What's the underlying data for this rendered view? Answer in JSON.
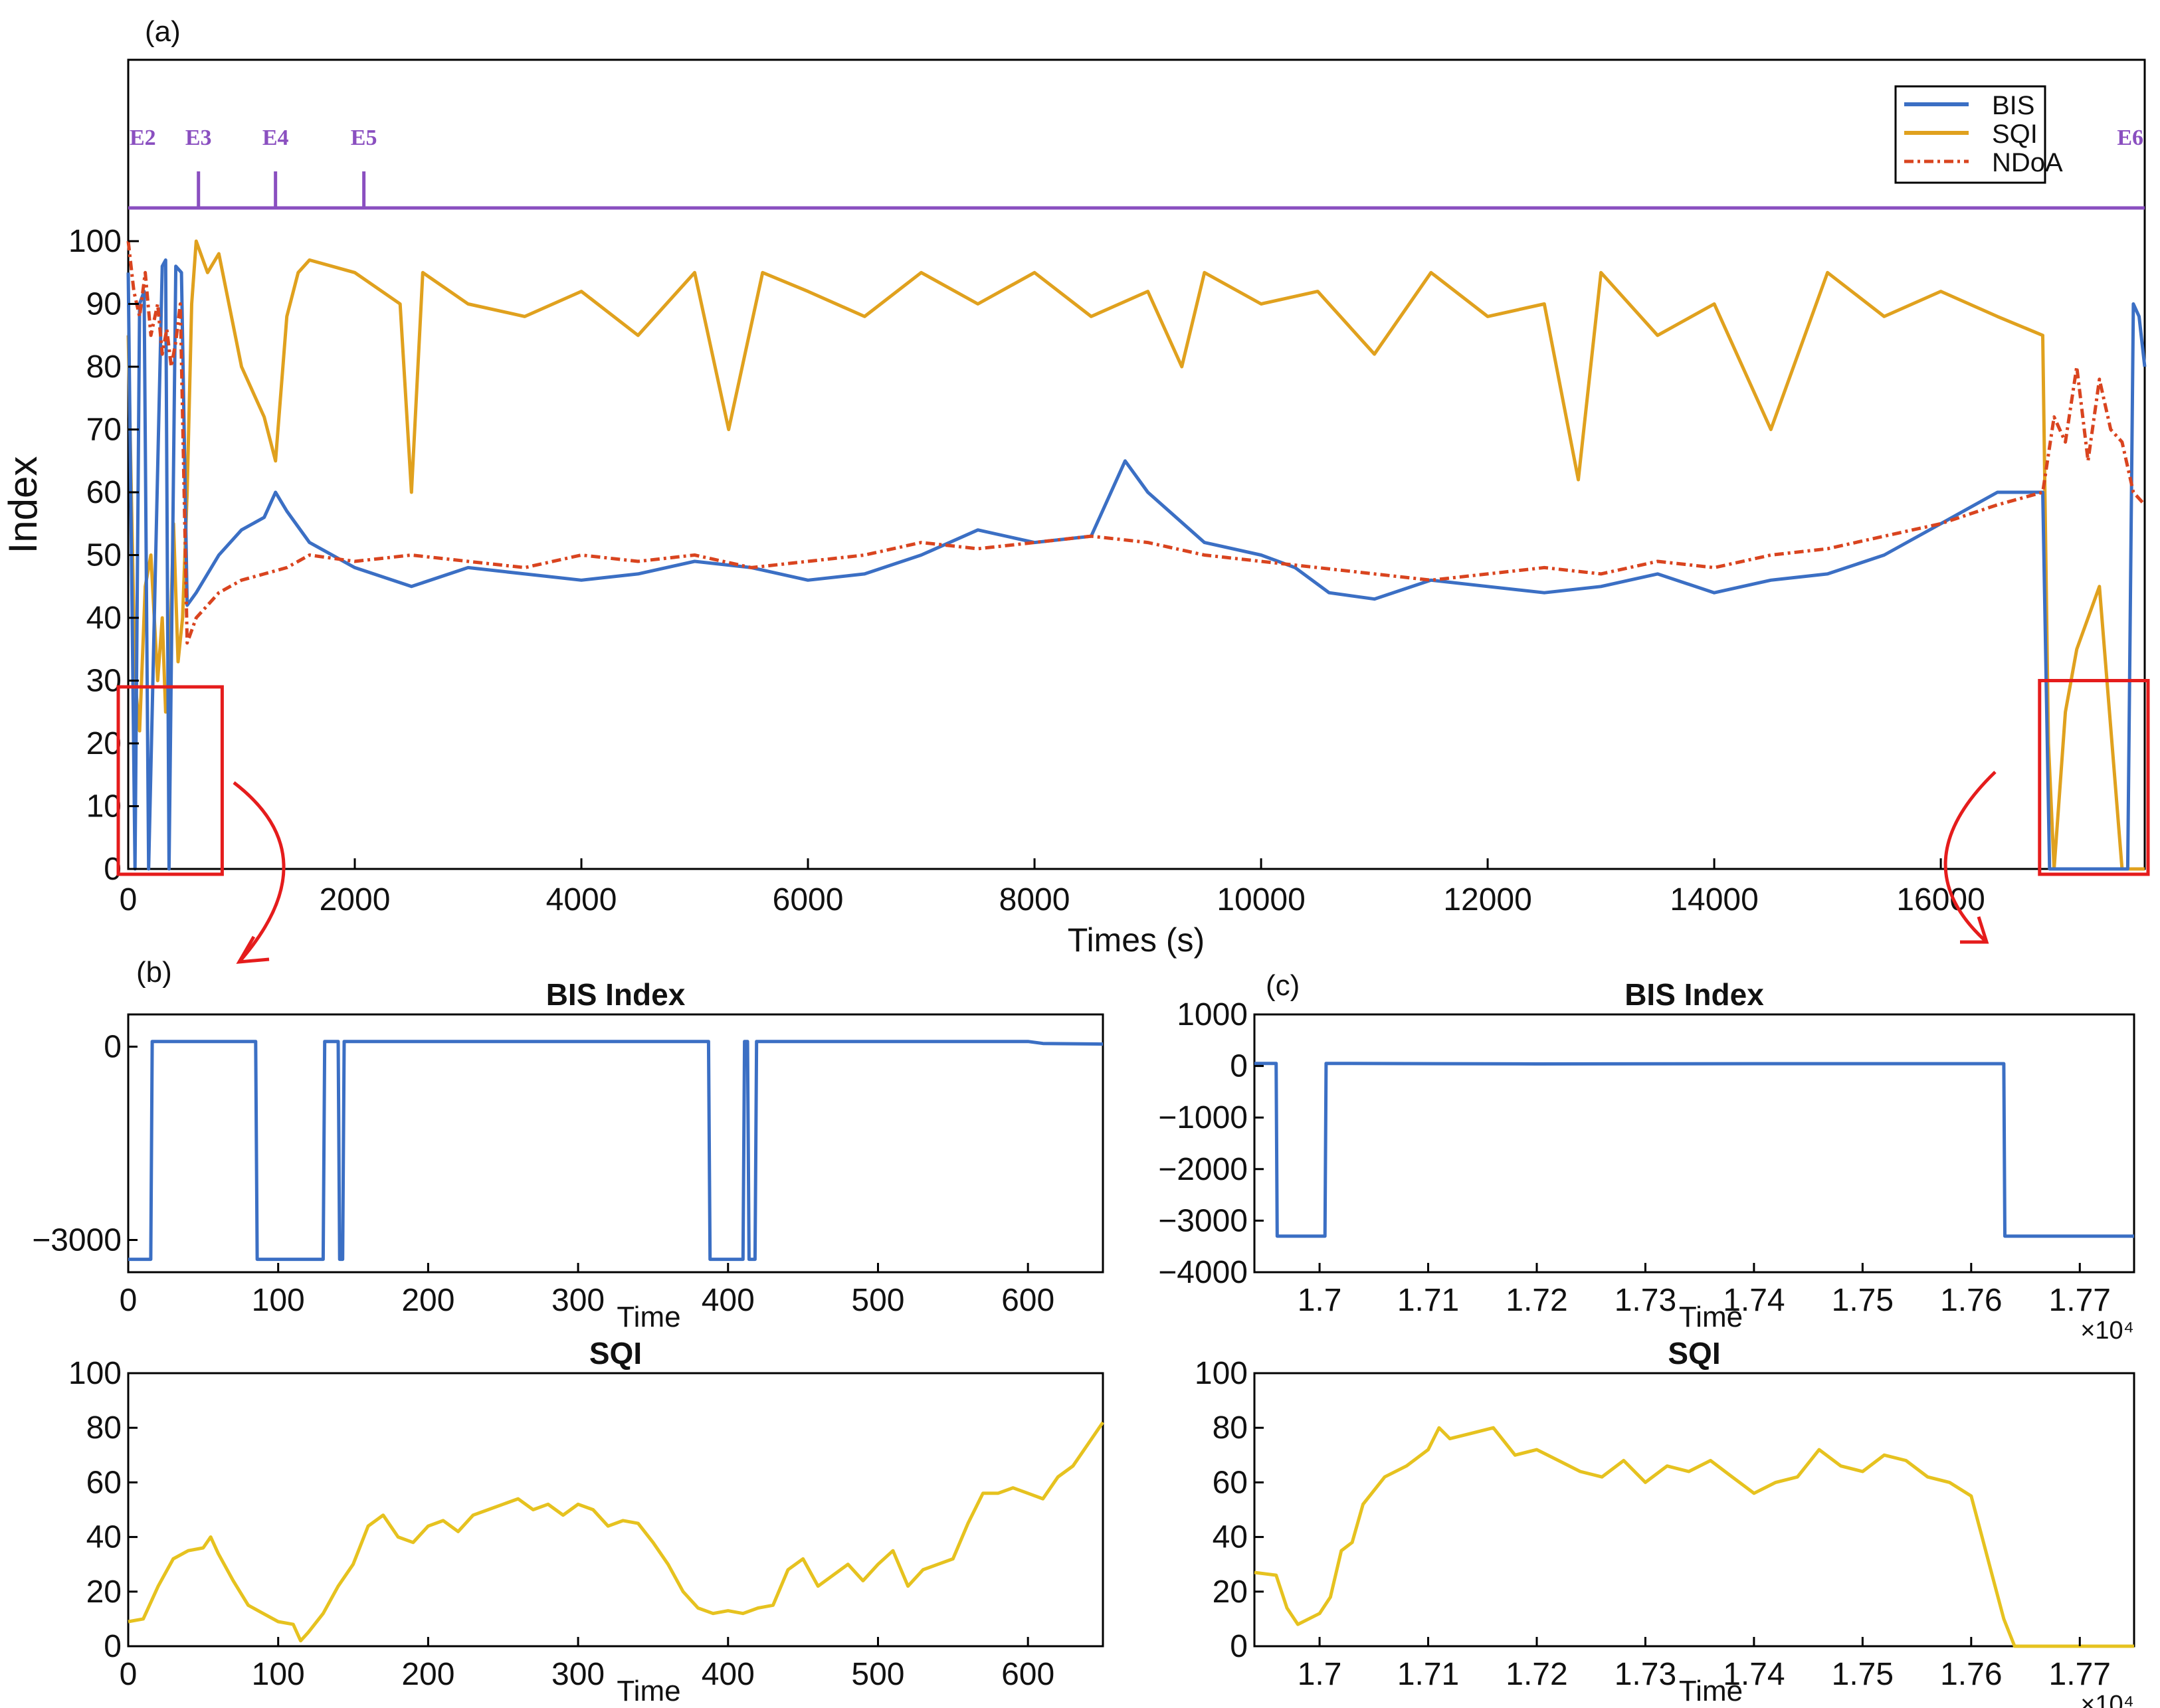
{
  "panel_labels": {
    "a": "(a)",
    "b": "(b)",
    "c": "(c)"
  },
  "colors": {
    "bis": "#3b6fc4",
    "sqi": "#e0a11e",
    "ndoa": "#d9441f",
    "sqi_zoom": "#e6c21f",
    "events": "#8a4fc0",
    "highlight": "#e51c1c"
  },
  "chart_data": [
    {
      "id": "a",
      "type": "line",
      "ylabel": "Index",
      "xlabel": "Times (s)",
      "xlim": [
        0,
        17800
      ],
      "ylim": [
        0,
        100
      ],
      "xticks": [
        0,
        2000,
        4000,
        6000,
        8000,
        10000,
        12000,
        14000,
        16000
      ],
      "yticks": [
        0,
        10,
        20,
        30,
        40,
        50,
        60,
        70,
        80,
        90,
        100
      ],
      "legend": {
        "placement": "top-right",
        "entries": [
          "BIS",
          "SQI",
          "NDoA"
        ]
      },
      "event_markers": [
        {
          "label": "E2",
          "x": 0
        },
        {
          "label": "E3",
          "x": 620
        },
        {
          "label": "E4",
          "x": 1300
        },
        {
          "label": "E5",
          "x": 2080
        },
        {
          "label": "E6",
          "x": 17800
        }
      ],
      "highlight_boxes": [
        {
          "x_range": [
            0,
            800
          ],
          "y_range": [
            0,
            29
          ]
        },
        {
          "x_range": [
            16960,
            17800
          ],
          "y_range": [
            0,
            30
          ]
        }
      ],
      "series": [
        {
          "name": "BIS",
          "x": [
            0,
            60,
            100,
            140,
            180,
            300,
            330,
            360,
            420,
            470,
            520,
            600,
            800,
            1000,
            1200,
            1300,
            1400,
            1600,
            2000,
            2500,
            3000,
            3500,
            4000,
            4500,
            5000,
            5500,
            6000,
            6500,
            7000,
            7500,
            8000,
            8500,
            8800,
            9000,
            9500,
            10000,
            10300,
            10600,
            11000,
            11500,
            12000,
            12500,
            13000,
            13500,
            14000,
            14500,
            15000,
            15500,
            16000,
            16500,
            16900,
            16960,
            17000,
            17200,
            17400,
            17600,
            17650,
            17700,
            17750,
            17800
          ],
          "y": [
            95,
            0,
            90,
            92,
            0,
            96,
            97,
            0,
            96,
            95,
            42,
            44,
            50,
            54,
            56,
            60,
            57,
            52,
            48,
            45,
            48,
            47,
            46,
            47,
            49,
            48,
            46,
            47,
            50,
            54,
            52,
            53,
            65,
            60,
            52,
            50,
            48,
            44,
            43,
            46,
            45,
            44,
            45,
            47,
            44,
            46,
            47,
            50,
            55,
            60,
            60,
            0,
            0,
            0,
            0,
            0,
            0,
            90,
            88,
            80
          ]
        },
        {
          "name": "SQI",
          "x": [
            0,
            60,
            100,
            150,
            200,
            260,
            300,
            330,
            360,
            400,
            440,
            480,
            520,
            560,
            600,
            700,
            800,
            1000,
            1200,
            1300,
            1400,
            1500,
            1600,
            2000,
            2400,
            2500,
            2600,
            3000,
            3500,
            4000,
            4500,
            5000,
            5300,
            5600,
            6000,
            6500,
            7000,
            7500,
            8000,
            8500,
            9000,
            9300,
            9500,
            10000,
            10500,
            11000,
            11500,
            12000,
            12500,
            12800,
            13000,
            13500,
            14000,
            14500,
            15000,
            15500,
            16000,
            16500,
            16900,
            16950,
            17000,
            17100,
            17200,
            17400,
            17600,
            17700,
            17800
          ],
          "y": [
            85,
            30,
            22,
            45,
            50,
            30,
            40,
            25,
            30,
            55,
            33,
            40,
            60,
            90,
            100,
            95,
            98,
            80,
            72,
            65,
            88,
            95,
            97,
            95,
            90,
            60,
            95,
            90,
            88,
            92,
            85,
            95,
            70,
            95,
            92,
            88,
            95,
            90,
            95,
            88,
            92,
            80,
            95,
            90,
            92,
            82,
            95,
            88,
            90,
            62,
            95,
            85,
            90,
            70,
            95,
            88,
            92,
            88,
            85,
            20,
            0,
            25,
            35,
            45,
            0,
            0,
            0
          ]
        },
        {
          "name": "NDoA",
          "x": [
            0,
            50,
            100,
            150,
            200,
            260,
            300,
            340,
            380,
            420,
            460,
            520,
            600,
            700,
            800,
            1000,
            1200,
            1400,
            1600,
            2000,
            2500,
            3000,
            3500,
            4000,
            4500,
            5000,
            5500,
            6000,
            6500,
            7000,
            7500,
            8000,
            8500,
            9000,
            9500,
            10000,
            10500,
            11000,
            11500,
            12000,
            12500,
            13000,
            13500,
            14000,
            14500,
            15000,
            15500,
            16000,
            16500,
            16900,
            17000,
            17100,
            17200,
            17300,
            17400,
            17500,
            17600,
            17700,
            17800
          ],
          "y": [
            100,
            92,
            88,
            95,
            85,
            90,
            82,
            86,
            80,
            84,
            90,
            36,
            40,
            42,
            44,
            46,
            47,
            48,
            50,
            49,
            50,
            49,
            48,
            50,
            49,
            50,
            48,
            49,
            50,
            52,
            51,
            52,
            53,
            52,
            50,
            49,
            48,
            47,
            46,
            47,
            48,
            47,
            49,
            48,
            50,
            51,
            53,
            55,
            58,
            60,
            72,
            68,
            80,
            65,
            78,
            70,
            68,
            60,
            58
          ]
        }
      ]
    },
    {
      "id": "b_bis",
      "type": "line",
      "title": "BIS Index",
      "xlabel": "Time",
      "xlim": [
        0,
        650
      ],
      "ylim": [
        -3500,
        500
      ],
      "xticks": [
        0,
        100,
        200,
        300,
        400,
        500,
        600
      ],
      "ytick_labels": [
        {
          "v": 0,
          "t": "0"
        },
        {
          "v": -3000,
          "t": "−3000"
        }
      ],
      "series": [
        {
          "name": "BIS",
          "x": [
            0,
            15,
            16,
            85,
            86,
            130,
            131,
            140,
            141,
            143,
            144,
            387,
            388,
            410,
            411,
            413,
            414,
            418,
            419,
            600,
            610,
            650
          ],
          "y": [
            -3300,
            -3300,
            80,
            80,
            -3300,
            -3300,
            80,
            80,
            -3300,
            -3300,
            80,
            80,
            -3300,
            -3300,
            80,
            80,
            -3300,
            -3300,
            80,
            80,
            50,
            40
          ]
        }
      ]
    },
    {
      "id": "c_bis",
      "type": "line",
      "title": "BIS Index",
      "xlabel": "Time",
      "xlim": [
        16940,
        17750
      ],
      "ylim": [
        -4000,
        1000
      ],
      "xticks": [
        17000,
        17100,
        17200,
        17300,
        17400,
        17500,
        17600,
        17700
      ],
      "xtick_labels": [
        "1.7",
        "1.71",
        "1.72",
        "1.73",
        "1.74",
        "1.75",
        "1.76",
        "1.77"
      ],
      "x_multiplier": "×10⁴",
      "yticks": [
        1000,
        0,
        -1000,
        -2000,
        -3000,
        -4000
      ],
      "ytick_labels": [
        "1000",
        "0",
        "−1000",
        "−2000",
        "−3000",
        "−4000"
      ],
      "series": [
        {
          "name": "BIS",
          "x": [
            16940,
            16960,
            16961,
            17005,
            17006,
            17200,
            17400,
            17630,
            17631,
            17750
          ],
          "y": [
            50,
            50,
            -3300,
            -3300,
            50,
            40,
            45,
            45,
            -3300,
            -3300
          ]
        }
      ]
    },
    {
      "id": "b_sqi",
      "type": "line",
      "title": "SQI",
      "xlabel": "Time",
      "xlim": [
        0,
        650
      ],
      "ylim": [
        0,
        100
      ],
      "xticks": [
        0,
        100,
        200,
        300,
        400,
        500,
        600
      ],
      "yticks": [
        0,
        20,
        40,
        60,
        80,
        100
      ],
      "series": [
        {
          "name": "SQI",
          "x": [
            0,
            10,
            20,
            30,
            40,
            50,
            55,
            60,
            70,
            80,
            90,
            100,
            110,
            115,
            120,
            130,
            140,
            150,
            160,
            170,
            180,
            190,
            200,
            210,
            220,
            230,
            240,
            250,
            260,
            270,
            280,
            290,
            300,
            310,
            320,
            330,
            340,
            350,
            360,
            370,
            380,
            390,
            400,
            410,
            420,
            430,
            440,
            450,
            460,
            470,
            480,
            490,
            500,
            510,
            520,
            530,
            540,
            550,
            560,
            570,
            580,
            590,
            600,
            610,
            620,
            630,
            640,
            650
          ],
          "y": [
            9,
            10,
            22,
            32,
            35,
            36,
            40,
            34,
            24,
            15,
            12,
            9,
            8,
            2,
            5,
            12,
            22,
            30,
            44,
            48,
            40,
            38,
            44,
            46,
            42,
            48,
            50,
            52,
            54,
            50,
            52,
            48,
            52,
            50,
            44,
            46,
            45,
            38,
            30,
            20,
            14,
            12,
            13,
            12,
            14,
            15,
            28,
            32,
            22,
            26,
            30,
            24,
            30,
            35,
            22,
            28,
            30,
            32,
            45,
            56,
            56,
            58,
            56,
            54,
            62,
            66,
            74,
            82
          ]
        }
      ]
    },
    {
      "id": "c_sqi",
      "type": "line",
      "title": "SQI",
      "xlabel": "Time",
      "xlim": [
        16940,
        17750
      ],
      "ylim": [
        0,
        100
      ],
      "xticks": [
        17000,
        17100,
        17200,
        17300,
        17400,
        17500,
        17600,
        17700
      ],
      "xtick_labels": [
        "1.7",
        "1.71",
        "1.72",
        "1.73",
        "1.74",
        "1.75",
        "1.76",
        "1.77"
      ],
      "x_multiplier": "×10⁴",
      "yticks": [
        0,
        20,
        40,
        60,
        80,
        100
      ],
      "series": [
        {
          "name": "SQI",
          "x": [
            16940,
            16960,
            16970,
            16980,
            17000,
            17010,
            17020,
            17030,
            17040,
            17060,
            17080,
            17100,
            17110,
            17120,
            17140,
            17160,
            17180,
            17200,
            17220,
            17240,
            17260,
            17280,
            17300,
            17320,
            17340,
            17360,
            17380,
            17400,
            17420,
            17440,
            17460,
            17480,
            17500,
            17520,
            17540,
            17560,
            17580,
            17600,
            17610,
            17620,
            17630,
            17640,
            17660,
            17700,
            17750
          ],
          "y": [
            27,
            26,
            14,
            8,
            12,
            18,
            35,
            38,
            52,
            62,
            66,
            72,
            80,
            76,
            78,
            80,
            70,
            72,
            68,
            64,
            62,
            68,
            60,
            66,
            64,
            68,
            62,
            56,
            60,
            62,
            72,
            66,
            64,
            70,
            68,
            62,
            60,
            55,
            40,
            25,
            10,
            0,
            0,
            0,
            0
          ]
        }
      ]
    }
  ]
}
